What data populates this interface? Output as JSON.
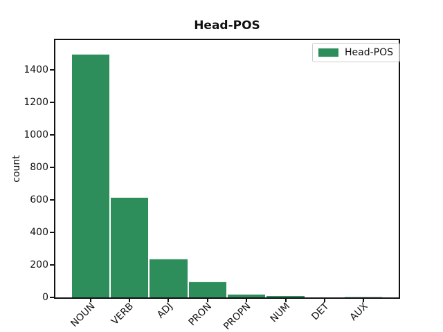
{
  "window": {
    "background": "#ffffff"
  },
  "title": "Head-POS",
  "legend": {
    "label": "Head-POS",
    "position": "upper right"
  },
  "axes": {
    "ylabel": "count",
    "xlabel": ""
  },
  "colors": {
    "bar": "#2e8e5b",
    "bar_edge": "#ffffff",
    "axis": "#111111",
    "text": "#111111",
    "legend_border": "#cccccc",
    "background": "#ffffff"
  },
  "chart_data": {
    "type": "bar",
    "title": "Head-POS",
    "categories": [
      "NOUN",
      "VERB",
      "ADJ",
      "PRON",
      "PROPN",
      "NUM",
      "DET",
      "AUX"
    ],
    "values": [
      1500,
      615,
      240,
      97,
      22,
      8,
      1,
      3
    ],
    "series": [
      {
        "name": "Head-POS",
        "values": [
          1500,
          615,
          240,
          97,
          22,
          8,
          1,
          3
        ]
      }
    ],
    "xlabel": "",
    "ylabel": "count",
    "ylim": [
      0,
      1583
    ],
    "yticks": [
      0,
      200,
      400,
      600,
      800,
      1000,
      1200,
      1400
    ],
    "xtick_rotation": 45,
    "grid": false,
    "legend_entries": [
      "Head-POS"
    ],
    "legend_position": "upper right",
    "bar_color": "#2e8e5b"
  }
}
